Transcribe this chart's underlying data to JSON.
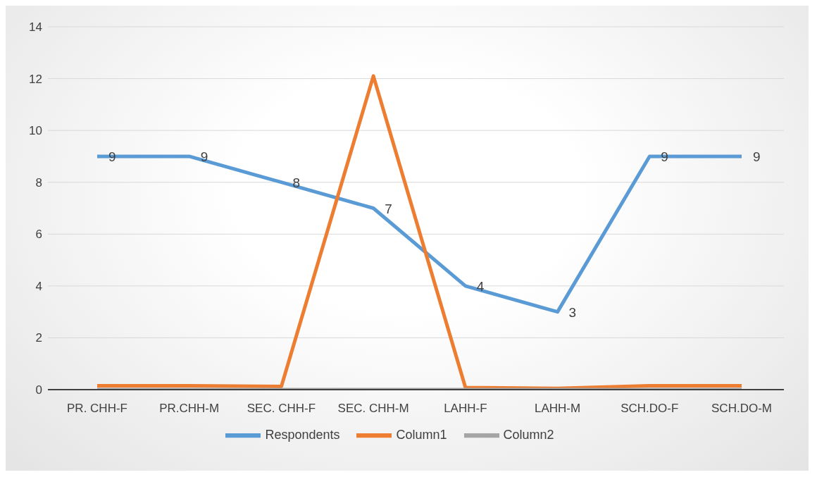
{
  "chart_data": {
    "type": "line",
    "categories": [
      "PR. CHH-F",
      "PR.CHH-M",
      "SEC. CHH-F",
      "SEC. CHH-M",
      "LAHH-F",
      "LAHH-M",
      "SCH.DO-F",
      "SCH.DO-M"
    ],
    "series": [
      {
        "name": "Respondents",
        "color": "#5b9bd5",
        "values": [
          9,
          9,
          8,
          7,
          4,
          3,
          9,
          9
        ],
        "value_labels": [
          "9",
          "9",
          "8",
          "7",
          "4",
          "3",
          "9",
          "9"
        ]
      },
      {
        "name": "Column1",
        "color": "#ed7d31",
        "values": [
          0.15,
          0.15,
          0.12,
          12.1,
          0.08,
          0.05,
          0.15,
          0.15
        ]
      },
      {
        "name": "Column2",
        "color": "#a5a5a5",
        "values": [
          0,
          0,
          0,
          0,
          0,
          0,
          0,
          0
        ]
      }
    ],
    "ylim": [
      0,
      14
    ],
    "yticks": [
      0,
      2,
      4,
      6,
      8,
      10,
      12,
      14
    ],
    "grid": "y",
    "legend": "bottom",
    "marker": "none",
    "line_style": "solid"
  }
}
